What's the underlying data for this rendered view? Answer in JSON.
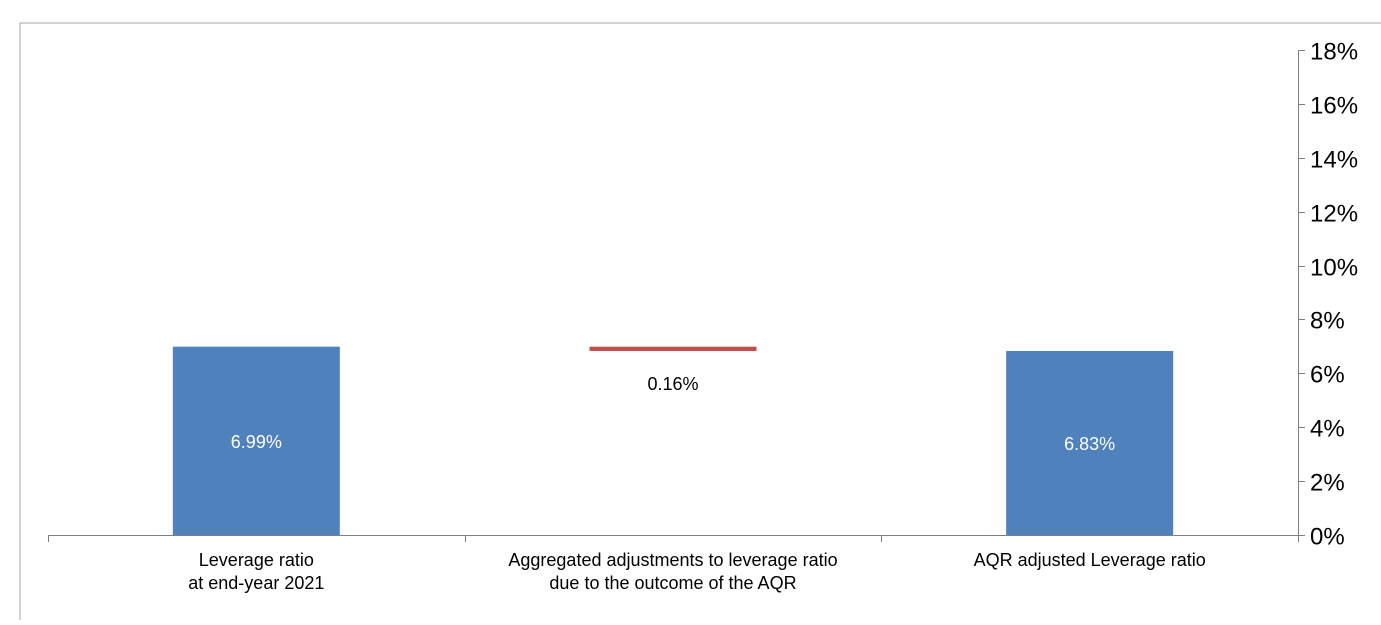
{
  "chart_data": {
    "type": "bar",
    "subtype": "waterfall",
    "categories": [
      [
        "Leverage ratio",
        "at end-year 2021"
      ],
      [
        "Aggregated adjustments to leverage ratio",
        "due to the outcome of the AQR"
      ],
      [
        "AQR adjusted Leverage ratio"
      ]
    ],
    "values": [
      6.99,
      -0.16,
      6.83
    ],
    "data_labels": [
      "6.99%",
      "0.16%",
      "6.83%"
    ],
    "y_axis": {
      "position": "right",
      "ylim": [
        0,
        18
      ],
      "ticks": [
        0,
        2,
        4,
        6,
        8,
        10,
        12,
        14,
        16,
        18
      ],
      "tick_labels": [
        "0%",
        "2%",
        "4%",
        "6%",
        "8%",
        "10%",
        "12%",
        "14%",
        "16%",
        "18%"
      ]
    },
    "grid": false,
    "legend": "none",
    "colors": {
      "bar": "#4f81bd",
      "adjustment": "#c0504d",
      "axis": "#7f7f7f",
      "frame": "#a6a6a6",
      "inside_label": "#ffffff",
      "text": "#000000"
    }
  }
}
